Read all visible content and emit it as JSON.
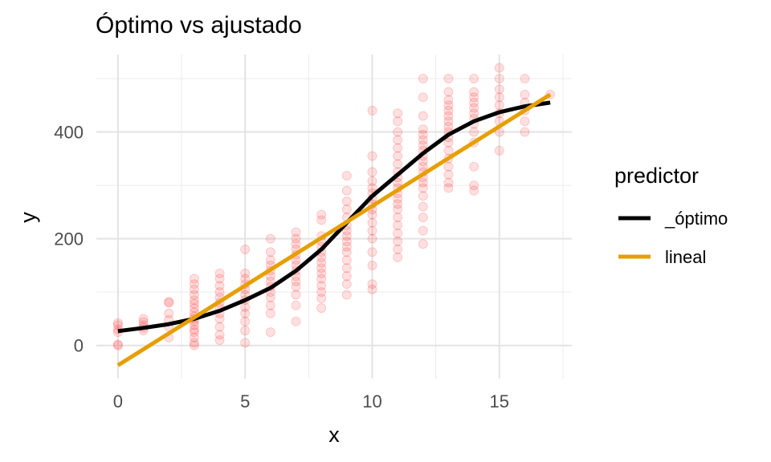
{
  "chart_data": {
    "type": "scatter",
    "title": "Óptimo vs ajustado",
    "xlabel": "x",
    "ylabel": "y",
    "xlim": [
      -0.85,
      17.85
    ],
    "ylim": [
      -62,
      545
    ],
    "x_ticks": [
      0,
      5,
      10,
      15
    ],
    "y_ticks": [
      0,
      200,
      400
    ],
    "grid": true,
    "legend": {
      "title": "predictor",
      "placement": "right",
      "entries": [
        {
          "label": "_óptimo",
          "color": "#000000"
        },
        {
          "label": "lineal",
          "color": "#E69F00"
        }
      ]
    },
    "point_color": "#ff0000",
    "point_opacity": 0.12,
    "points": [
      [
        0,
        0
      ],
      [
        0,
        2
      ],
      [
        0,
        25
      ],
      [
        0,
        30
      ],
      [
        0,
        38
      ],
      [
        0,
        42
      ],
      [
        1,
        28
      ],
      [
        1,
        33
      ],
      [
        1,
        38
      ],
      [
        1,
        44
      ],
      [
        1,
        50
      ],
      [
        2,
        15
      ],
      [
        2,
        35
      ],
      [
        2,
        48
      ],
      [
        2,
        60
      ],
      [
        2,
        80
      ],
      [
        2,
        82
      ],
      [
        3,
        0
      ],
      [
        3,
        5
      ],
      [
        3,
        15
      ],
      [
        3,
        25
      ],
      [
        3,
        30
      ],
      [
        3,
        38
      ],
      [
        3,
        45
      ],
      [
        3,
        50
      ],
      [
        3,
        55
      ],
      [
        3,
        62
      ],
      [
        3,
        70
      ],
      [
        3,
        78
      ],
      [
        3,
        85
      ],
      [
        3,
        95
      ],
      [
        3,
        105
      ],
      [
        3,
        115
      ],
      [
        3,
        125
      ],
      [
        4,
        10
      ],
      [
        4,
        20
      ],
      [
        4,
        35
      ],
      [
        4,
        50
      ],
      [
        4,
        60
      ],
      [
        4,
        70
      ],
      [
        4,
        80
      ],
      [
        4,
        90
      ],
      [
        4,
        100
      ],
      [
        4,
        112
      ],
      [
        4,
        125
      ],
      [
        4,
        135
      ],
      [
        5,
        5
      ],
      [
        5,
        28
      ],
      [
        5,
        45
      ],
      [
        5,
        60
      ],
      [
        5,
        72
      ],
      [
        5,
        85
      ],
      [
        5,
        95
      ],
      [
        5,
        105
      ],
      [
        5,
        115
      ],
      [
        5,
        125
      ],
      [
        5,
        135
      ],
      [
        5,
        180
      ],
      [
        6,
        25
      ],
      [
        6,
        60
      ],
      [
        6,
        75
      ],
      [
        6,
        90
      ],
      [
        6,
        100
      ],
      [
        6,
        110
      ],
      [
        6,
        120
      ],
      [
        6,
        130
      ],
      [
        6,
        140
      ],
      [
        6,
        150
      ],
      [
        6,
        160
      ],
      [
        6,
        175
      ],
      [
        6,
        200
      ],
      [
        7,
        45
      ],
      [
        7,
        75
      ],
      [
        7,
        95
      ],
      [
        7,
        110
      ],
      [
        7,
        120
      ],
      [
        7,
        130
      ],
      [
        7,
        140
      ],
      [
        7,
        150
      ],
      [
        7,
        160
      ],
      [
        7,
        170
      ],
      [
        7,
        180
      ],
      [
        7,
        190
      ],
      [
        7,
        200
      ],
      [
        7,
        212
      ],
      [
        8,
        70
      ],
      [
        8,
        88
      ],
      [
        8,
        100
      ],
      [
        8,
        112
      ],
      [
        8,
        125
      ],
      [
        8,
        135
      ],
      [
        8,
        145
      ],
      [
        8,
        155
      ],
      [
        8,
        165
      ],
      [
        8,
        175
      ],
      [
        8,
        185
      ],
      [
        8,
        195
      ],
      [
        8,
        205
      ],
      [
        8,
        235
      ],
      [
        8,
        245
      ],
      [
        9,
        95
      ],
      [
        9,
        115
      ],
      [
        9,
        130
      ],
      [
        9,
        145
      ],
      [
        9,
        160
      ],
      [
        9,
        175
      ],
      [
        9,
        185
      ],
      [
        9,
        195
      ],
      [
        9,
        205
      ],
      [
        9,
        215
      ],
      [
        9,
        225
      ],
      [
        9,
        240
      ],
      [
        9,
        255
      ],
      [
        9,
        270
      ],
      [
        9,
        290
      ],
      [
        9,
        318
      ],
      [
        10,
        105
      ],
      [
        10,
        115
      ],
      [
        10,
        150
      ],
      [
        10,
        175
      ],
      [
        10,
        200
      ],
      [
        10,
        215
      ],
      [
        10,
        230
      ],
      [
        10,
        245
      ],
      [
        10,
        255
      ],
      [
        10,
        265
      ],
      [
        10,
        275
      ],
      [
        10,
        285
      ],
      [
        10,
        295
      ],
      [
        10,
        308
      ],
      [
        10,
        325
      ],
      [
        10,
        355
      ],
      [
        10,
        440
      ],
      [
        11,
        165
      ],
      [
        11,
        180
      ],
      [
        11,
        195
      ],
      [
        11,
        210
      ],
      [
        11,
        225
      ],
      [
        11,
        240
      ],
      [
        11,
        255
      ],
      [
        11,
        265
      ],
      [
        11,
        275
      ],
      [
        11,
        285
      ],
      [
        11,
        295
      ],
      [
        11,
        305
      ],
      [
        11,
        315
      ],
      [
        11,
        325
      ],
      [
        11,
        340
      ],
      [
        11,
        355
      ],
      [
        11,
        370
      ],
      [
        11,
        385
      ],
      [
        11,
        400
      ],
      [
        11,
        420
      ],
      [
        11,
        435
      ],
      [
        12,
        190
      ],
      [
        12,
        215
      ],
      [
        12,
        240
      ],
      [
        12,
        260
      ],
      [
        12,
        280
      ],
      [
        12,
        295
      ],
      [
        12,
        305
      ],
      [
        12,
        315
      ],
      [
        12,
        325
      ],
      [
        12,
        335
      ],
      [
        12,
        345
      ],
      [
        12,
        355
      ],
      [
        12,
        365
      ],
      [
        12,
        375
      ],
      [
        12,
        385
      ],
      [
        12,
        395
      ],
      [
        12,
        405
      ],
      [
        12,
        430
      ],
      [
        12,
        465
      ],
      [
        12,
        500
      ],
      [
        13,
        295
      ],
      [
        13,
        305
      ],
      [
        13,
        320
      ],
      [
        13,
        335
      ],
      [
        13,
        350
      ],
      [
        13,
        365
      ],
      [
        13,
        380
      ],
      [
        13,
        390
      ],
      [
        13,
        400
      ],
      [
        13,
        410
      ],
      [
        13,
        420
      ],
      [
        13,
        430
      ],
      [
        13,
        440
      ],
      [
        13,
        450
      ],
      [
        13,
        460
      ],
      [
        13,
        475
      ],
      [
        13,
        500
      ],
      [
        14,
        290
      ],
      [
        14,
        300
      ],
      [
        14,
        335
      ],
      [
        14,
        380
      ],
      [
        14,
        400
      ],
      [
        14,
        415
      ],
      [
        14,
        425
      ],
      [
        14,
        435
      ],
      [
        14,
        445
      ],
      [
        14,
        455
      ],
      [
        14,
        465
      ],
      [
        14,
        475
      ],
      [
        14,
        500
      ],
      [
        15,
        365
      ],
      [
        15,
        400
      ],
      [
        15,
        420
      ],
      [
        15,
        435
      ],
      [
        15,
        450
      ],
      [
        15,
        465
      ],
      [
        15,
        480
      ],
      [
        15,
        500
      ],
      [
        15,
        520
      ],
      [
        16,
        400
      ],
      [
        16,
        420
      ],
      [
        16,
        440
      ],
      [
        16,
        455
      ],
      [
        16,
        470
      ],
      [
        16,
        500
      ],
      [
        17,
        470
      ]
    ],
    "series": [
      {
        "name": "_óptimo",
        "color": "#000000",
        "x": [
          0,
          1,
          2,
          3,
          4,
          5,
          6,
          7,
          8,
          9,
          10,
          11,
          12,
          13,
          14,
          15,
          16,
          17
        ],
        "y": [
          27,
          33,
          40,
          50,
          65,
          85,
          108,
          140,
          180,
          230,
          280,
          320,
          360,
          395,
          420,
          437,
          448,
          455
        ]
      },
      {
        "name": "lineal",
        "color": "#E69F00",
        "x": [
          0,
          17
        ],
        "y": [
          -37,
          470
        ]
      }
    ]
  }
}
